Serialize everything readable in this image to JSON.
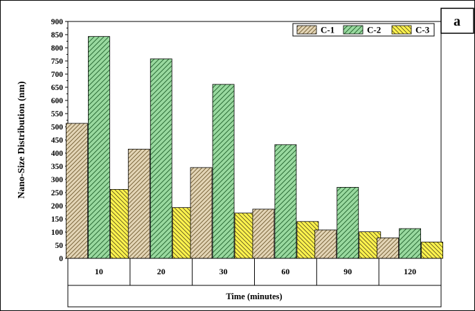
{
  "panel_label": "a",
  "chart_data": {
    "type": "bar",
    "categories": [
      "10",
      "20",
      "30",
      "60",
      "90",
      "120"
    ],
    "series": [
      {
        "name": "C-1",
        "values": [
          513,
          415,
          345,
          187,
          108,
          78
        ],
        "color": "#e3d5b6",
        "hatch": "diag-right"
      },
      {
        "name": "C-2",
        "values": [
          843,
          758,
          661,
          432,
          270,
          113
        ],
        "color": "#99d99f",
        "hatch": "diag-right"
      },
      {
        "name": "C-3",
        "values": [
          262,
          193,
          172,
          140,
          101,
          62
        ],
        "color": "#fff34d",
        "hatch": "diag-left"
      }
    ],
    "xlabel": "Time (minutes)",
    "ylabel": "Nano-Size Distribution (nm)",
    "ylim": [
      0,
      900
    ],
    "yticks": [
      "0",
      "50",
      "100",
      "150",
      "200",
      "250",
      "300",
      "350",
      "400",
      "450",
      "500",
      "550",
      "600",
      "650",
      "700",
      "750",
      "800",
      "850",
      "900"
    ],
    "legend_position": "top-right"
  }
}
